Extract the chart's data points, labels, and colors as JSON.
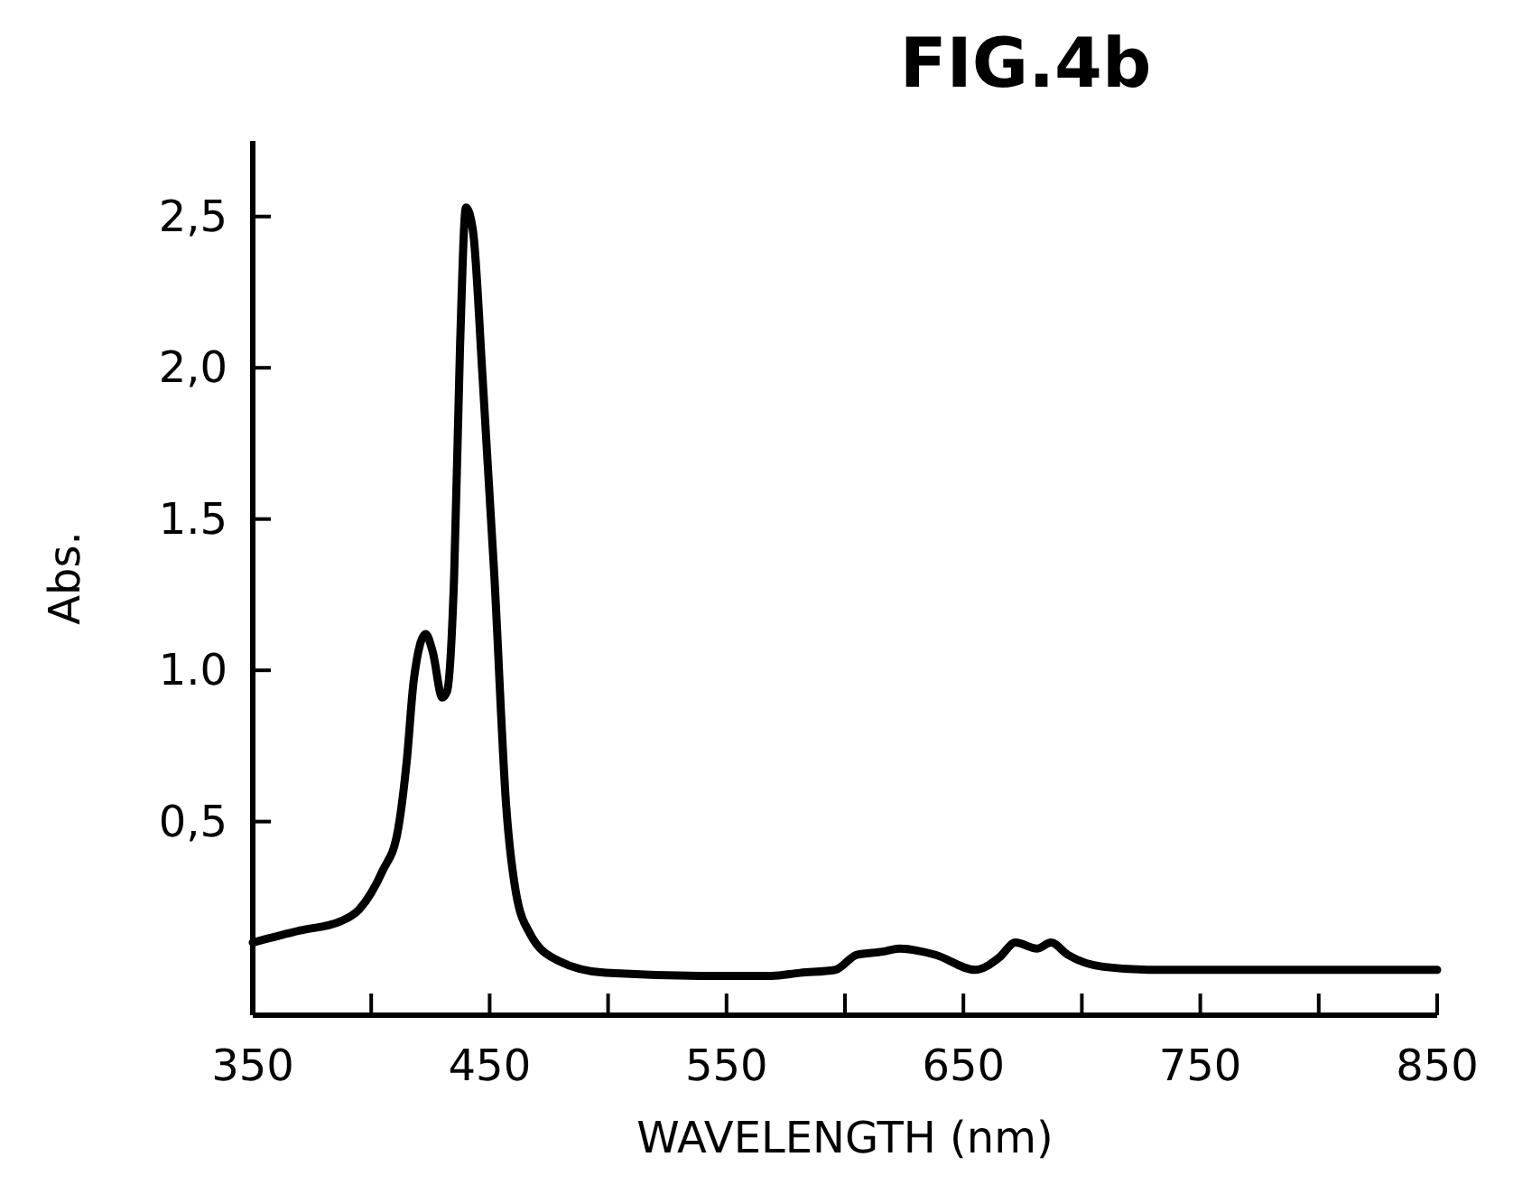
{
  "chart_data": {
    "type": "line",
    "title": "FIG.4b",
    "xlabel": "WAVELENGTH (nm)",
    "ylabel": "Abs.",
    "x": [
      350,
      370,
      387,
      395,
      405,
      411,
      415,
      418,
      423,
      426,
      430,
      432,
      435,
      437.5,
      440,
      443,
      447,
      452,
      457,
      461,
      467,
      479,
      499,
      544,
      569,
      581,
      596,
      605,
      616,
      623,
      638,
      655,
      665,
      672,
      681,
      687,
      694,
      709,
      729,
      779,
      850
    ],
    "series": [
      {
        "color": "#000000",
        "values": [
          0.1,
          0.14,
          0.17,
          0.21,
          0.34,
          0.46,
          0.7,
          0.97,
          1.12,
          1.06,
          0.91,
          0.93,
          1.31,
          2.07,
          2.53,
          2.45,
          1.97,
          1.31,
          0.55,
          0.27,
          0.13,
          0.04,
          0.0,
          -0.01,
          -0.01,
          0.0,
          0.01,
          0.06,
          0.07,
          0.08,
          0.06,
          0.01,
          0.05,
          0.1,
          0.08,
          0.1,
          0.06,
          0.02,
          0.01,
          0.01,
          0.01
        ]
      }
    ],
    "xlim": [
      350,
      850
    ],
    "ylim": [
      -0.14,
      2.75
    ],
    "xticks": [
      350,
      {
        "value": 400,
        "label": null
      },
      450,
      {
        "value": 500,
        "label": null
      },
      550,
      {
        "value": 600,
        "label": null
      },
      650,
      {
        "value": 700,
        "label": null
      },
      750,
      {
        "value": 800,
        "label": null
      },
      850
    ],
    "yticks": [
      {
        "value": 0.5,
        "label": "0,5"
      },
      {
        "value": 1.0,
        "label": "1.0"
      },
      {
        "value": 1.5,
        "label": "1.5"
      },
      {
        "value": 2.0,
        "label": "2,0"
      },
      {
        "value": 2.5,
        "label": "2,5"
      }
    ],
    "grid": false,
    "marker": "none",
    "line_style": "solid"
  }
}
